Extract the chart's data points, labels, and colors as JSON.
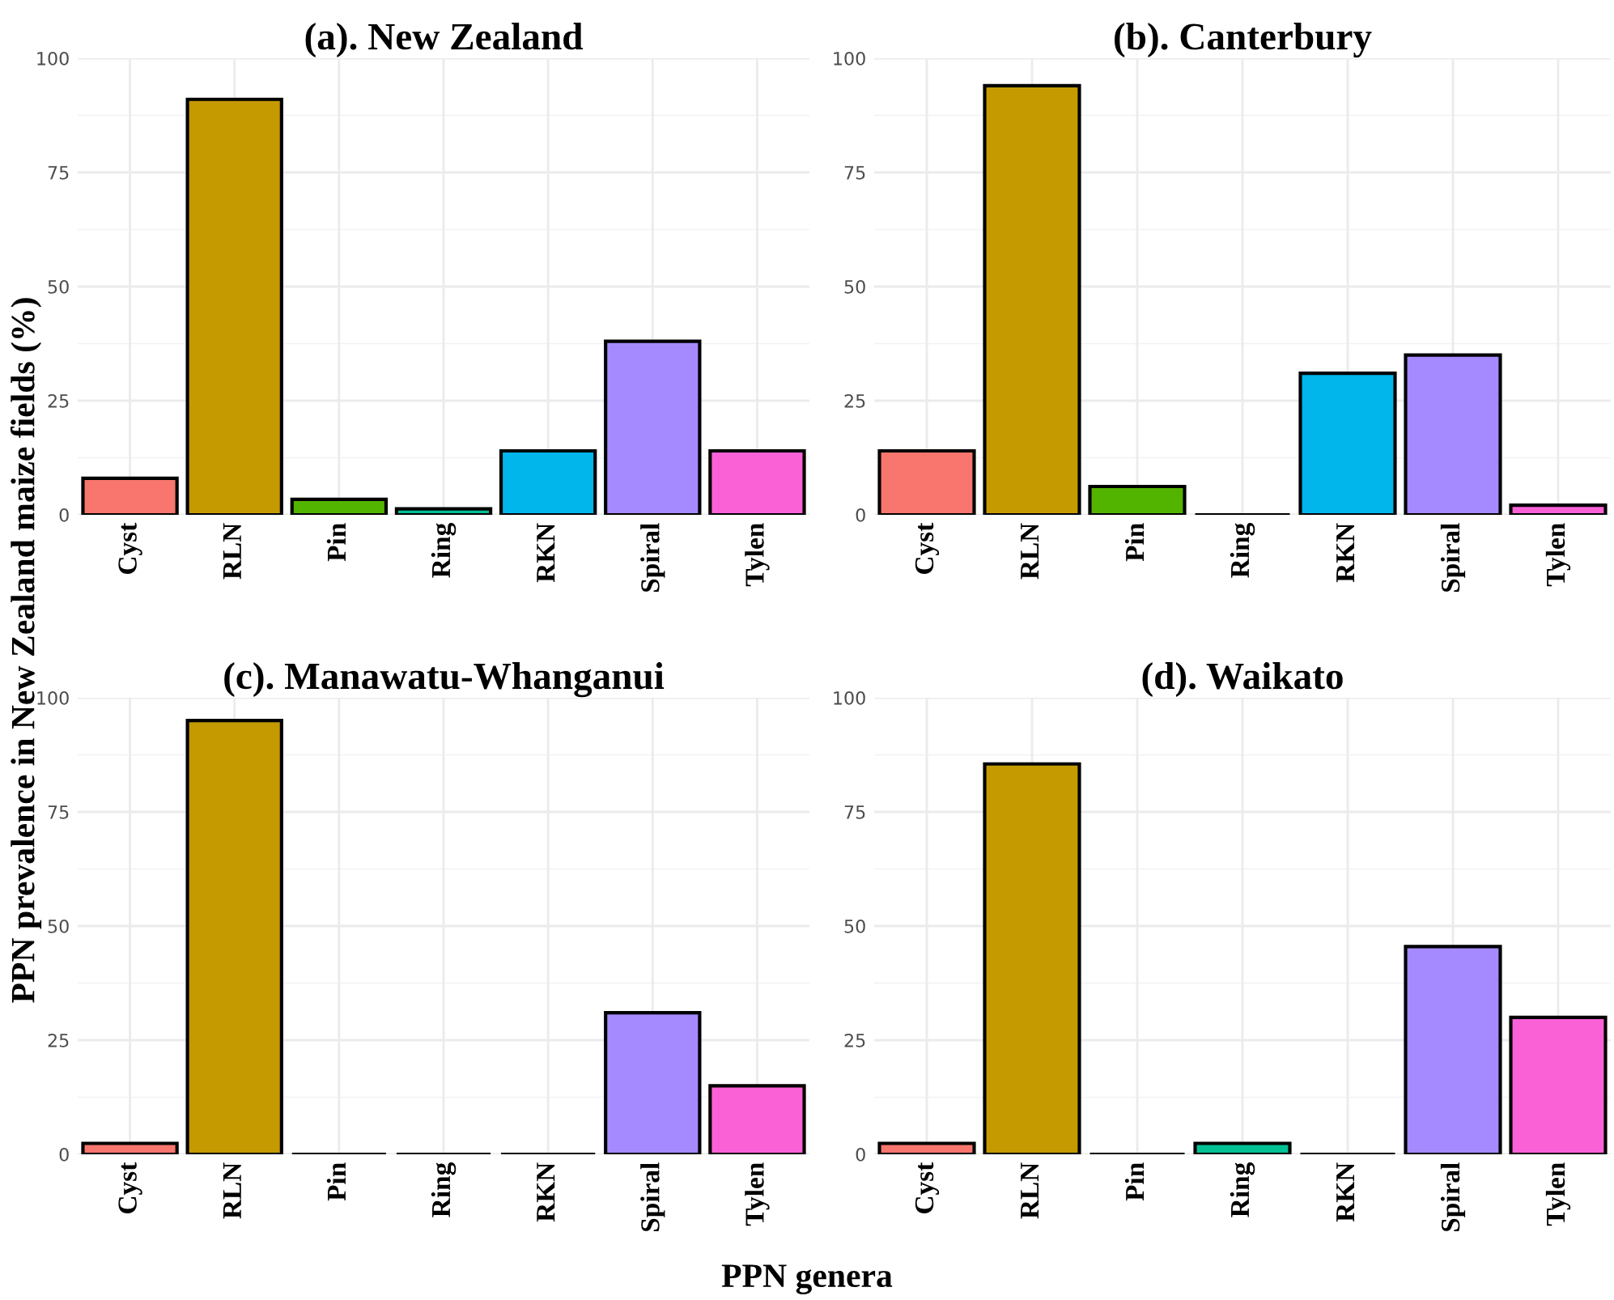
{
  "chart_data": [
    {
      "type": "bar",
      "title": "(a). New Zealand",
      "ylabel": "PPN prevalence in New Zealand maize fields (%)",
      "categories": [
        "Cyst",
        "RLN",
        "Pin",
        "Ring",
        "RKN",
        "Spiral",
        "Tylen"
      ],
      "values": [
        8,
        91,
        3.4,
        1.3,
        14,
        38,
        14
      ],
      "colors": [
        "#f8766d",
        "#c49a00",
        "#53b400",
        "#00c094",
        "#00b6eb",
        "#a58aff",
        "#fb61d7"
      ],
      "ylim": [
        0,
        100
      ],
      "yticks": [
        0,
        25,
        50,
        75,
        100
      ],
      "grid": true
    },
    {
      "type": "bar",
      "title": "(b). Canterbury",
      "categories": [
        "Cyst",
        "RLN",
        "Pin",
        "Ring",
        "RKN",
        "Spiral",
        "Tylen"
      ],
      "values": [
        14,
        94,
        6.2,
        0,
        31,
        35,
        2.1
      ],
      "colors": [
        "#f8766d",
        "#c49a00",
        "#53b400",
        null,
        "#00b6eb",
        "#a58aff",
        "#fb61d7"
      ],
      "ylim": [
        0,
        100
      ],
      "yticks": [
        0,
        25,
        50,
        75,
        100
      ],
      "grid": true
    },
    {
      "type": "bar",
      "title": "(c). Manawatu-Whanganui",
      "xlabel": "PPN genera",
      "categories": [
        "Cyst",
        "RLN",
        "Pin",
        "Ring",
        "RKN",
        "Spiral",
        "Tylen"
      ],
      "values": [
        2.4,
        95,
        0,
        0,
        0,
        31,
        15
      ],
      "colors": [
        "#f8766d",
        "#c49a00",
        null,
        null,
        null,
        "#a58aff",
        "#fb61d7"
      ],
      "ylim": [
        0,
        100
      ],
      "yticks": [
        0,
        25,
        50,
        75,
        100
      ],
      "grid": true
    },
    {
      "type": "bar",
      "title": "(d). Waikato",
      "categories": [
        "Cyst",
        "RLN",
        "Pin",
        "Ring",
        "RKN",
        "Spiral",
        "Tylen"
      ],
      "values": [
        2.4,
        85.5,
        0,
        2.4,
        0,
        45.5,
        30
      ],
      "colors": [
        "#f8766d",
        "#c49a00",
        null,
        "#00c094",
        null,
        "#a58aff",
        "#fb61d7"
      ],
      "ylim": [
        0,
        100
      ],
      "yticks": [
        0,
        25,
        50,
        75,
        100
      ],
      "grid": true
    }
  ]
}
